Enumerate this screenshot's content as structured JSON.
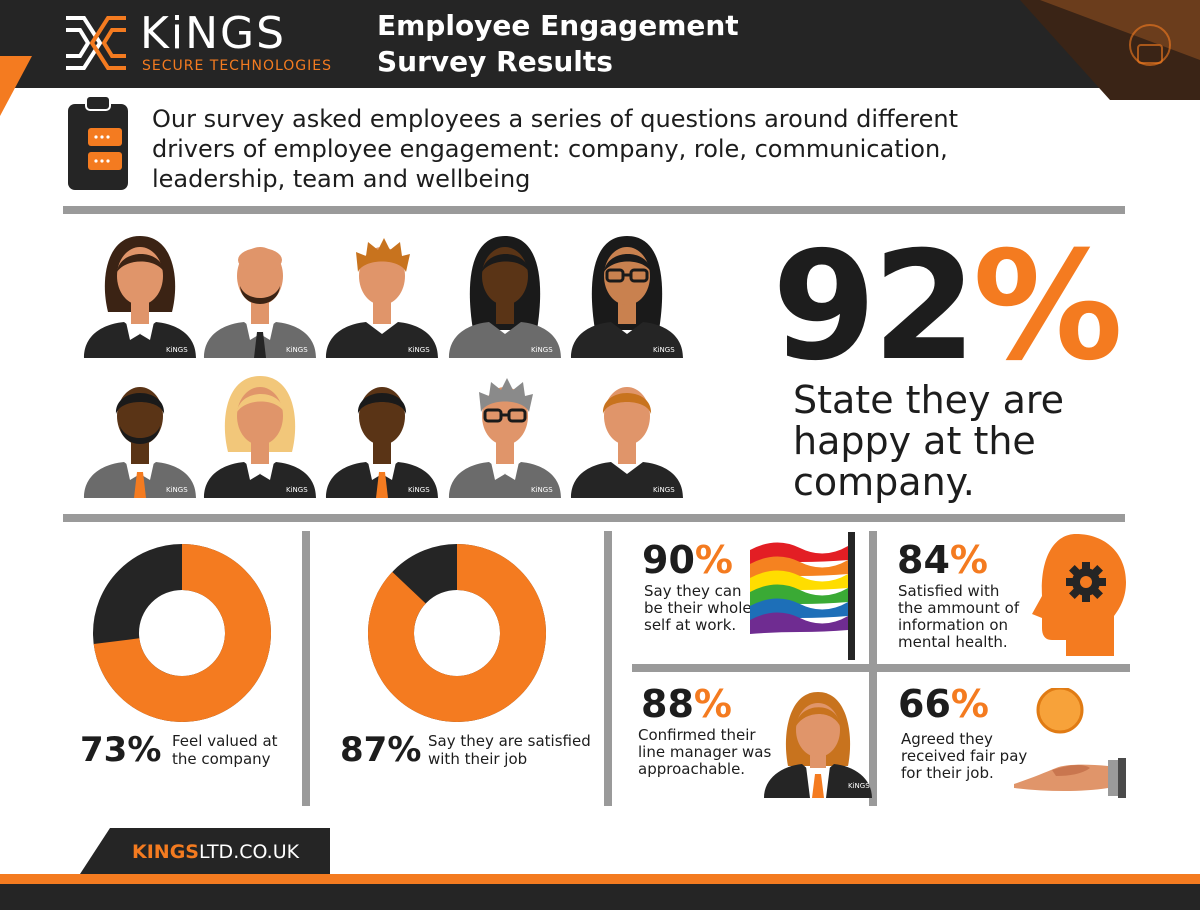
{
  "header": {
    "logo_name": "KiNGS",
    "logo_sub": "SECURE TECHNOLOGIES",
    "title_line1": "Employee Engagement",
    "title_line2": "Survey Results"
  },
  "intro": {
    "line1": "Our survey asked employees a series of questions around different",
    "line2": "drivers of employee engagement: company, role, communication,",
    "line3": "leadership, team and wellbeing",
    "icon": "clipboard-icon"
  },
  "people": {
    "badge": "KiNGS",
    "count": 10
  },
  "headline": {
    "value": "92",
    "percent": "%",
    "text_line1": "State they are",
    "text_line2": "happy at the",
    "text_line3": "company."
  },
  "donuts": [
    {
      "value": "73",
      "percent": "%",
      "fraction": 0.73,
      "text_line1": "Feel valued at",
      "text_line2": "the company"
    },
    {
      "value": "87",
      "percent": "%",
      "fraction": 0.87,
      "text_line1": "Say they are satisfied",
      "text_line2": "with their job"
    }
  ],
  "stats": [
    {
      "value": "90",
      "percent": "%",
      "lines": [
        "Say they can",
        "be their whole",
        "self at work."
      ],
      "icon": "rainbow-flag-icon"
    },
    {
      "value": "84",
      "percent": "%",
      "lines": [
        "Satisfied with",
        "the ammount of",
        "information on",
        "mental health."
      ],
      "icon": "head-gear-icon"
    },
    {
      "value": "88",
      "percent": "%",
      "lines": [
        "Confirmed their",
        "line manager was",
        "approachable."
      ],
      "icon": "manager-avatar-icon"
    },
    {
      "value": "66",
      "percent": "%",
      "lines": [
        "Agreed they",
        "received fair pay",
        "for their job."
      ],
      "icon": "hand-coin-icon"
    }
  ],
  "footer": {
    "url_bold": "KINGS",
    "url_rest": "LTD.CO.UK"
  },
  "colors": {
    "accent": "#f47b20",
    "dark": "#252525",
    "grey": "#9a9a9a",
    "skin": "#e0956a"
  }
}
